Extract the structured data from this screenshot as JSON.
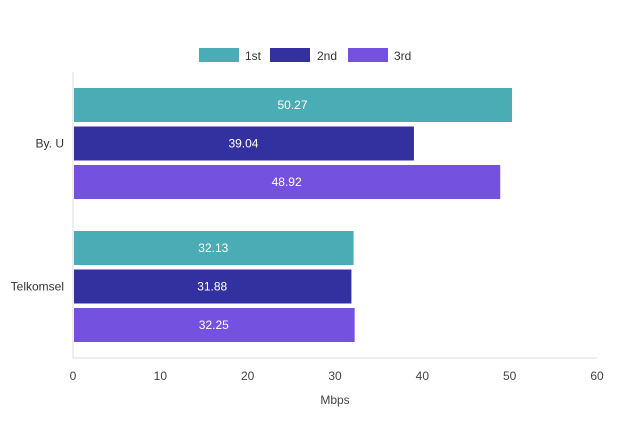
{
  "chart_data": {
    "type": "bar",
    "orientation": "horizontal",
    "categories": [
      "By. U",
      "Telkomsel"
    ],
    "series": [
      {
        "name": "1st",
        "color": "#4aadb5",
        "values": [
          50.27,
          32.13
        ]
      },
      {
        "name": "2nd",
        "color": "#3330a0",
        "values": [
          39.04,
          31.88
        ]
      },
      {
        "name": "3rd",
        "color": "#7551e0",
        "values": [
          48.92,
          32.25
        ]
      }
    ],
    "xlabel": "Mbps",
    "ylabel": "",
    "xlim": [
      0,
      60
    ],
    "xticks": [
      0,
      10,
      20,
      30,
      40,
      50,
      60
    ],
    "legend_position": "top-center",
    "grid": false
  }
}
